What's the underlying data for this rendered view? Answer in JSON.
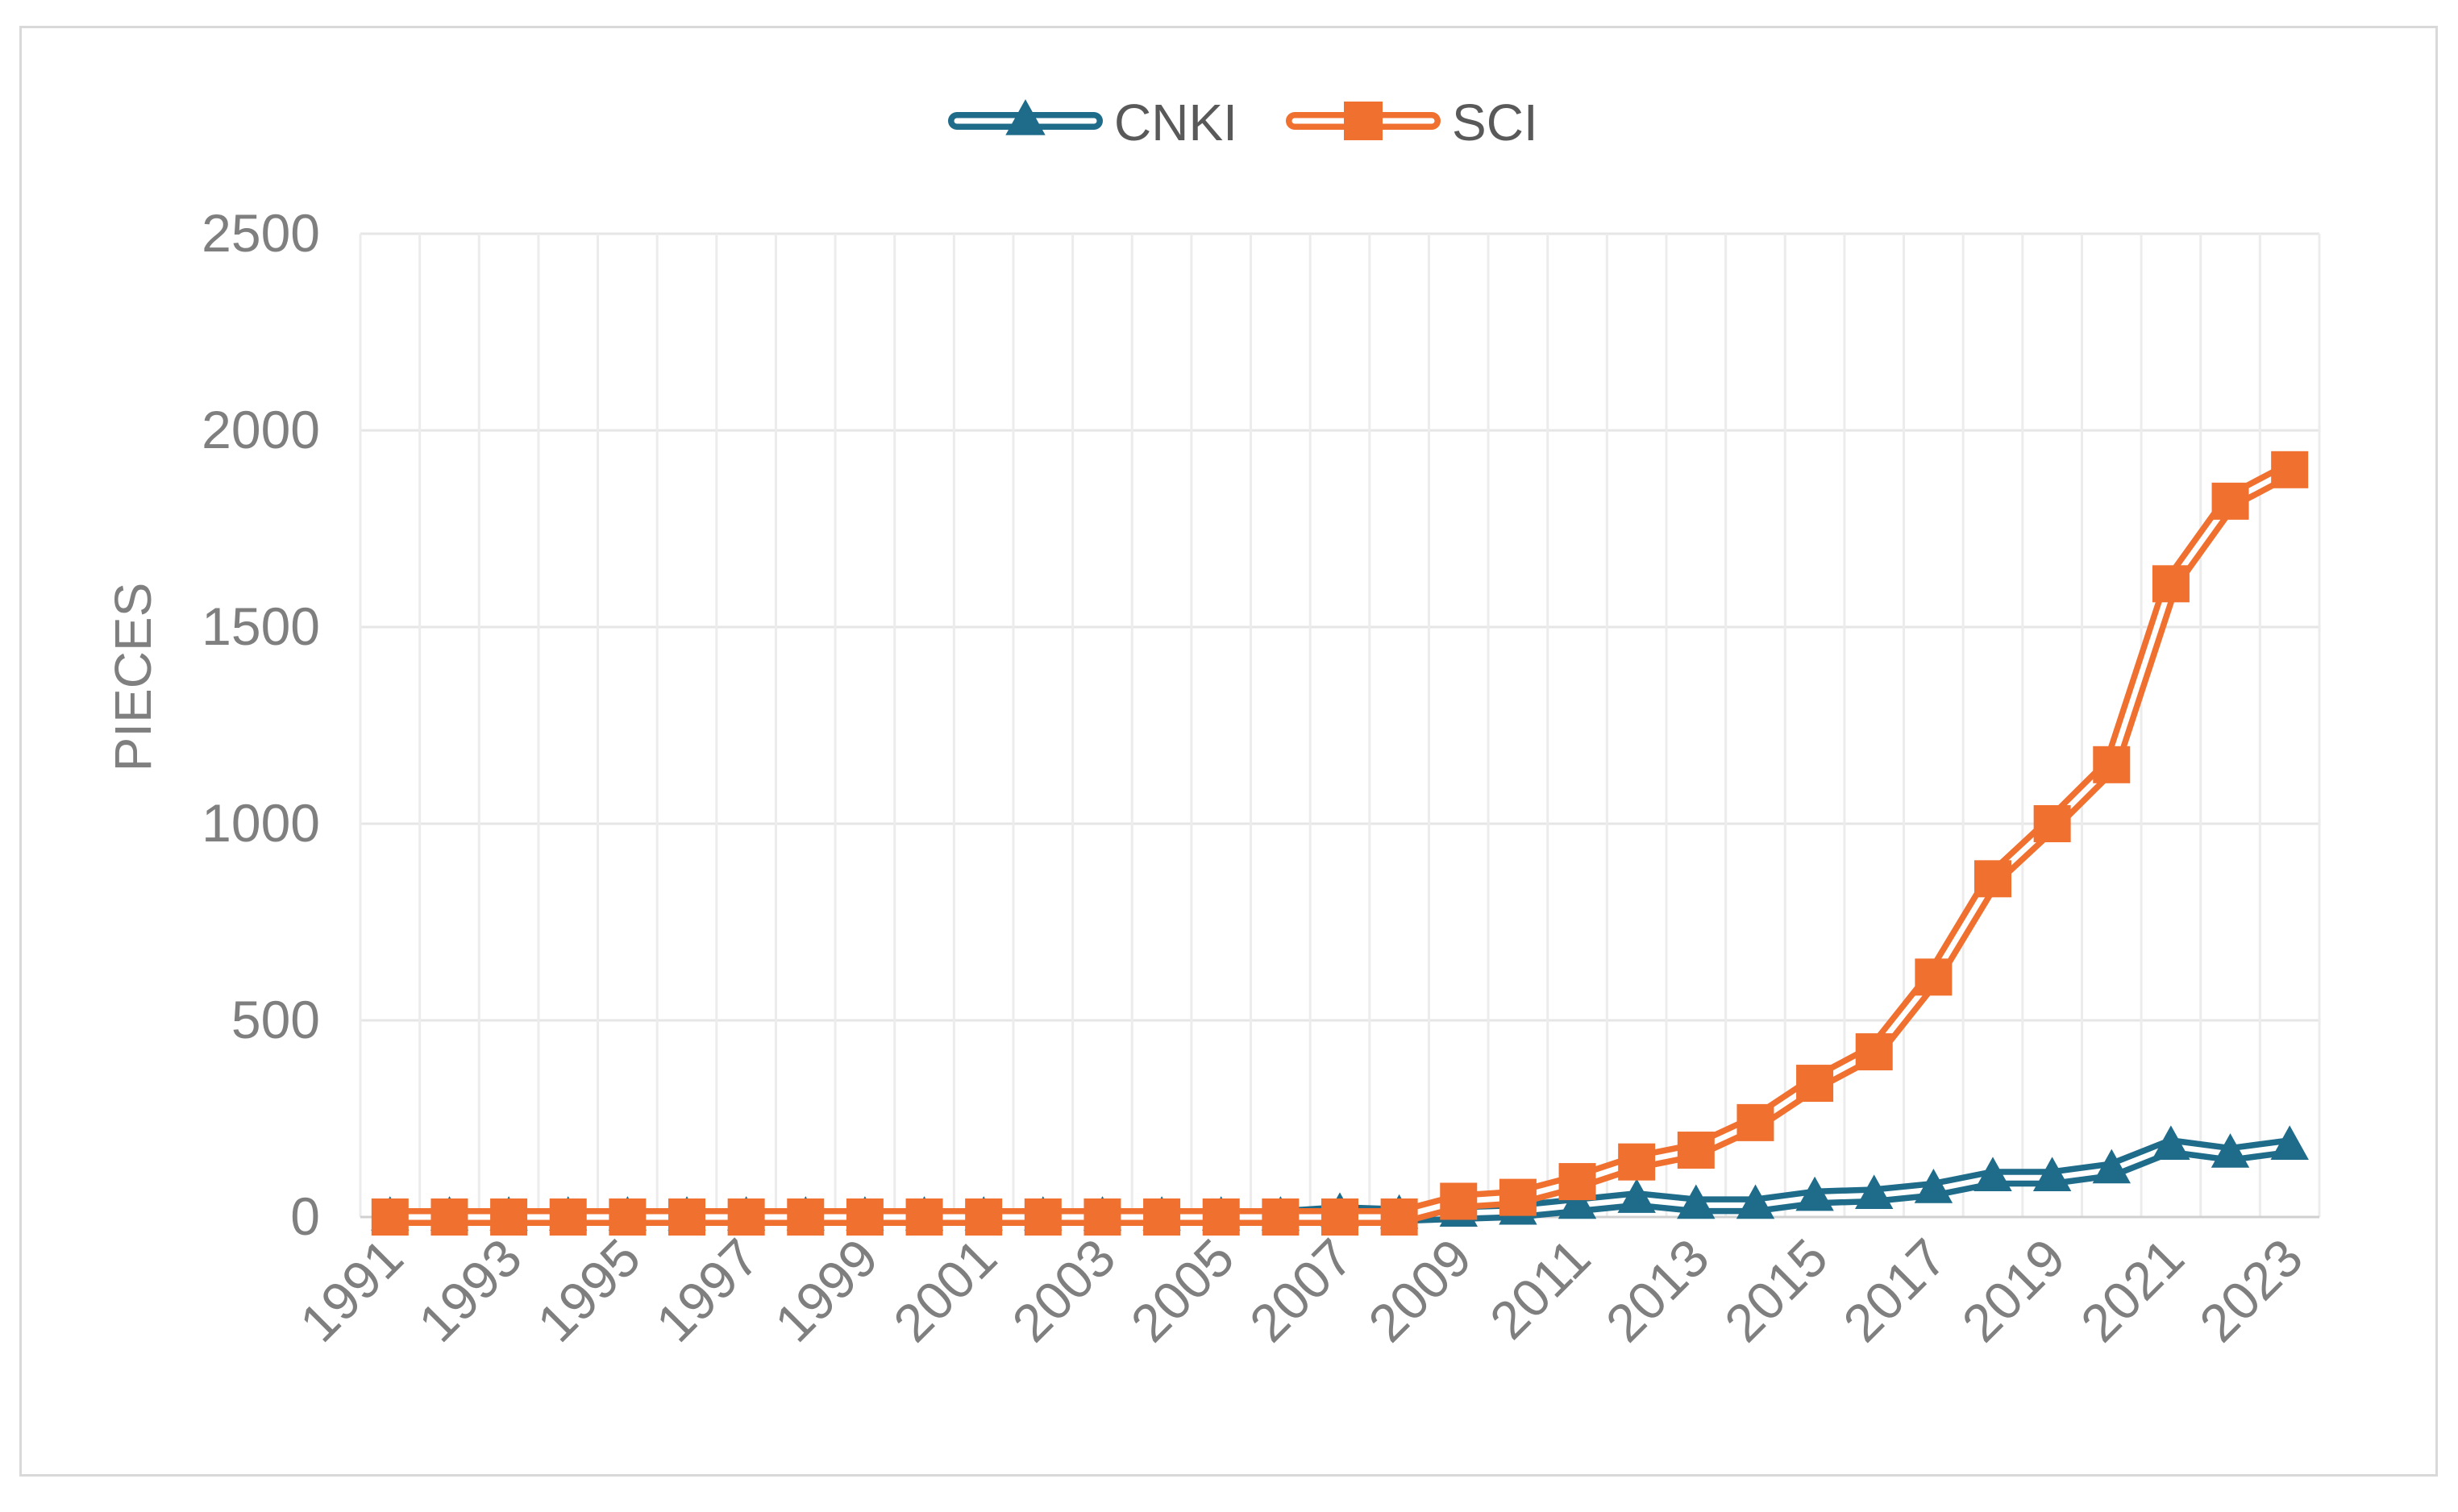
{
  "chart_data": {
    "type": "line",
    "title": "",
    "xlabel": "",
    "ylabel": "PIECES",
    "ylim": [
      0,
      2500
    ],
    "yticks": [
      0,
      500,
      1000,
      1500,
      2000,
      2500
    ],
    "grid": true,
    "legend": "top-center",
    "x": [
      1991,
      1992,
      1993,
      1994,
      1995,
      1996,
      1997,
      1998,
      1999,
      2000,
      2001,
      2002,
      2003,
      2004,
      2005,
      2006,
      2007,
      2008,
      2009,
      2010,
      2011,
      2012,
      2013,
      2014,
      2015,
      2016,
      2017,
      2018,
      2019,
      2020,
      2021,
      2022,
      2023
    ],
    "x_tick_labels": [
      "1991",
      "1993",
      "1995",
      "1997",
      "1999",
      "2001",
      "2003",
      "2005",
      "2007",
      "2009",
      "2011",
      "2013",
      "2015",
      "2017",
      "2019",
      "2021",
      "2023"
    ],
    "series": [
      {
        "name": "CNKI",
        "color": "#1f6b8a",
        "marker": "triangle",
        "values": [
          0,
          0,
          0,
          0,
          0,
          0,
          0,
          0,
          0,
          0,
          0,
          0,
          0,
          0,
          0,
          0,
          10,
          5,
          10,
          15,
          30,
          45,
          30,
          30,
          50,
          55,
          70,
          100,
          100,
          120,
          180,
          160,
          180
        ]
      },
      {
        "name": "SCI",
        "color": "#f07030",
        "marker": "square",
        "values": [
          0,
          0,
          0,
          0,
          0,
          0,
          0,
          0,
          0,
          0,
          0,
          0,
          0,
          0,
          0,
          0,
          0,
          0,
          40,
          50,
          90,
          140,
          170,
          240,
          340,
          420,
          610,
          860,
          1000,
          1150,
          1610,
          1820,
          1900
        ]
      }
    ]
  }
}
